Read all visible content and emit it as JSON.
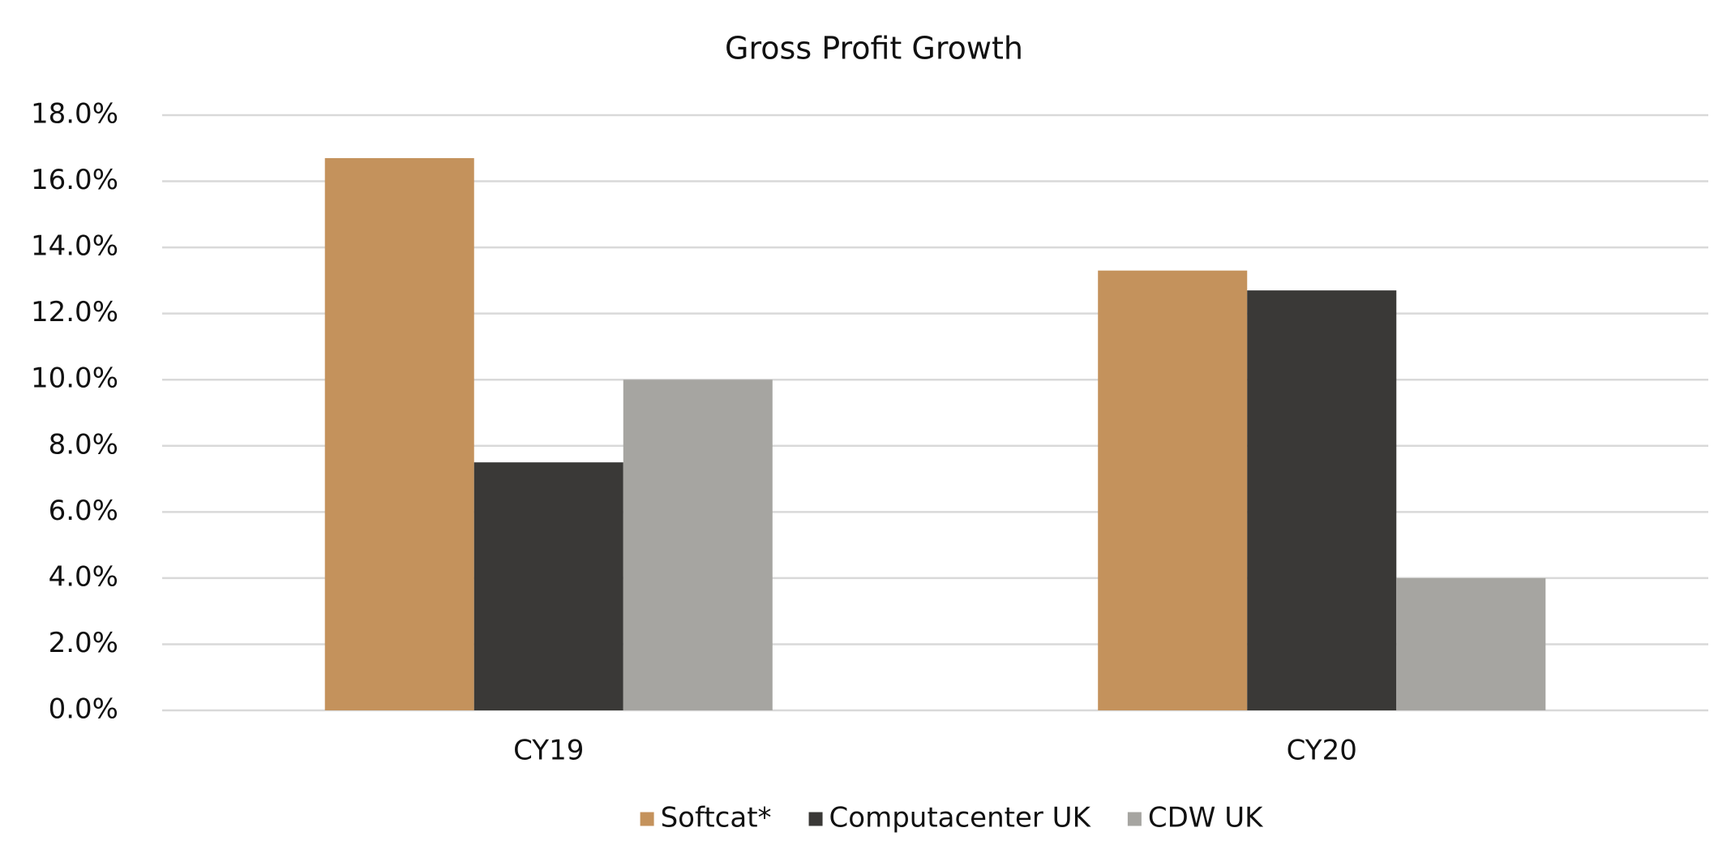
{
  "chart_data": {
    "type": "bar",
    "title": "Gross Profit Growth",
    "categories": [
      "CY19",
      "CY20"
    ],
    "series": [
      {
        "name": "Softcat*",
        "color": "#c4925c",
        "values": [
          16.7,
          13.3
        ]
      },
      {
        "name": "Computacenter UK",
        "color": "#3a3937",
        "values": [
          7.5,
          12.7
        ]
      },
      {
        "name": "CDW UK",
        "color": "#a6a5a1",
        "values": [
          10.0,
          4.0
        ]
      }
    ],
    "ylim": [
      0,
      18
    ],
    "yticks": [
      {
        "value": 0,
        "label": "0.0%"
      },
      {
        "value": 2,
        "label": "2.0%"
      },
      {
        "value": 4,
        "label": "4.0%"
      },
      {
        "value": 6,
        "label": "6.0%"
      },
      {
        "value": 8,
        "label": "8.0%"
      },
      {
        "value": 10,
        "label": "10.0%"
      },
      {
        "value": 12,
        "label": "12.0%"
      },
      {
        "value": 14,
        "label": "14.0%"
      },
      {
        "value": 16,
        "label": "16.0%"
      },
      {
        "value": 18,
        "label": "18.0%"
      }
    ],
    "grid": true,
    "legend": "bottom"
  }
}
